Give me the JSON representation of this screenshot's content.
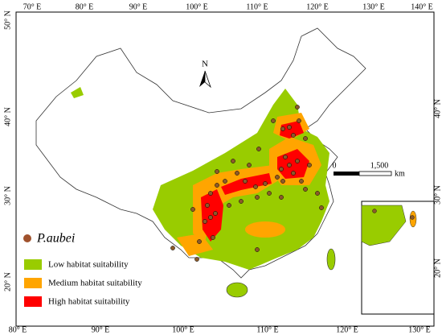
{
  "map": {
    "top_labels": [
      "70° E",
      "80° E",
      "90° E",
      "100° E",
      "110° E",
      "120° E",
      "130° E",
      "140° E"
    ],
    "bottom_labels": [
      "80° E",
      "90° E",
      "100° E",
      "110° E",
      "120° E",
      "130° E"
    ],
    "left_labels": [
      "50° N",
      "40° N",
      "30° N",
      "20° N"
    ],
    "right_labels": [
      "40° N",
      "30° N",
      "20° N"
    ],
    "north": "N",
    "scale": {
      "start": "0",
      "end": "1,500",
      "unit": "km"
    },
    "legend": {
      "species": "P.aubei",
      "items": [
        "Low habitat suitability",
        "Medium habitat suitability",
        "High habitat suitability"
      ]
    }
  }
}
